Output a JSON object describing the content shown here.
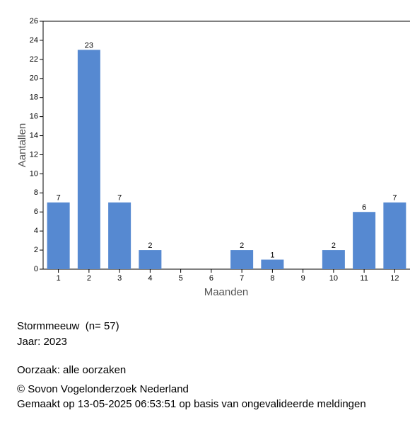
{
  "chart_data": {
    "type": "bar",
    "x_label": "Maanden",
    "y_label": "Aantallen",
    "categories": [
      "1",
      "2",
      "3",
      "4",
      "5",
      "6",
      "7",
      "8",
      "9",
      "10",
      "11",
      "12"
    ],
    "values": [
      7,
      23,
      7,
      2,
      0,
      0,
      2,
      1,
      0,
      2,
      6,
      7
    ],
    "color": "#5689d1",
    "ylim": [
      0,
      26
    ],
    "yticks": [
      0,
      2,
      4,
      6,
      8,
      10,
      12,
      14,
      16,
      18,
      20,
      22,
      24,
      26
    ]
  },
  "footer": {
    "species": "Stormmeeuw  (n= 57)",
    "year": "Jaar: 2023",
    "cause": "Oorzaak: alle oorzaken",
    "copyright": "© Sovon Vogelonderzoek Nederland",
    "generated": "Gemaakt op 13-05-2025 06:53:51 op basis van ongevalideerde meldingen"
  }
}
